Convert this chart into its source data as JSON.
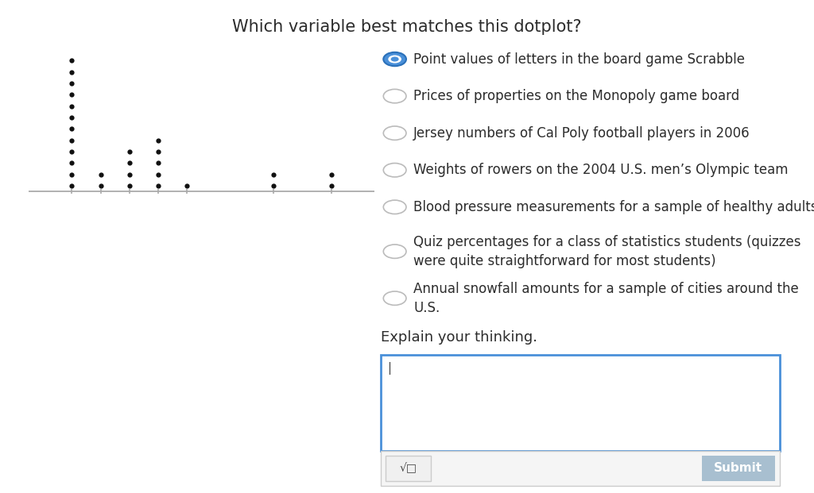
{
  "title": "Which variable best matches this dotplot?",
  "title_fontsize": 15,
  "background_color": "#ffffff",
  "dot_data": {
    "1": 12,
    "2": 2,
    "3": 4,
    "4": 5,
    "5": 1,
    "8": 2,
    "10": 2
  },
  "axis_xlim": [
    -0.5,
    11.5
  ],
  "axis_ylim": [
    0,
    13
  ],
  "dot_color": "#111111",
  "dot_size": 4.5,
  "axis_line_color": "#aaaaaa",
  "tick_color": "#aaaaaa",
  "radio_options": [
    {
      "text": "Point values of letters in the board game Scrabble",
      "selected": true,
      "multiline": false
    },
    {
      "text": "Prices of properties on the Monopoly game board",
      "selected": false,
      "multiline": false
    },
    {
      "text": "Jersey numbers of Cal Poly football players in 2006",
      "selected": false,
      "multiline": false
    },
    {
      "text": "Weights of rowers on the 2004 U.S. men’s Olympic team",
      "selected": false,
      "multiline": false
    },
    {
      "text": "Blood pressure measurements for a sample of healthy adults",
      "selected": false,
      "multiline": false
    },
    {
      "text": "Quiz percentages for a class of statistics students (quizzes\nwere quite straightforward for most students)",
      "selected": false,
      "multiline": true
    },
    {
      "text": "Annual snowfall amounts for a sample of cities around the\nU.S.",
      "selected": false,
      "multiline": true
    }
  ],
  "radio_selected_fill": "#4a90d9",
  "radio_selected_edge": "#2a70b9",
  "radio_unselected_fill": "#ffffff",
  "radio_unselected_edge": "#bbbbbb",
  "radio_dot_color": "#4a90d9",
  "explain_label": "Explain your thinking.",
  "explain_fontsize": 13,
  "option_fontsize": 12,
  "textbox_border_color": "#4a90d9",
  "textbox_bg": "#ffffff",
  "submit_button_text": "Submit",
  "submit_button_color": "#a8bfd0",
  "submit_text_color": "#ffffff",
  "formula_button_bg": "#f0f0f0",
  "formula_button_edge": "#cccccc",
  "formula_symbol": "√□",
  "bottom_bar_bg": "#f5f5f5",
  "bottom_bar_edge": "#cccccc"
}
